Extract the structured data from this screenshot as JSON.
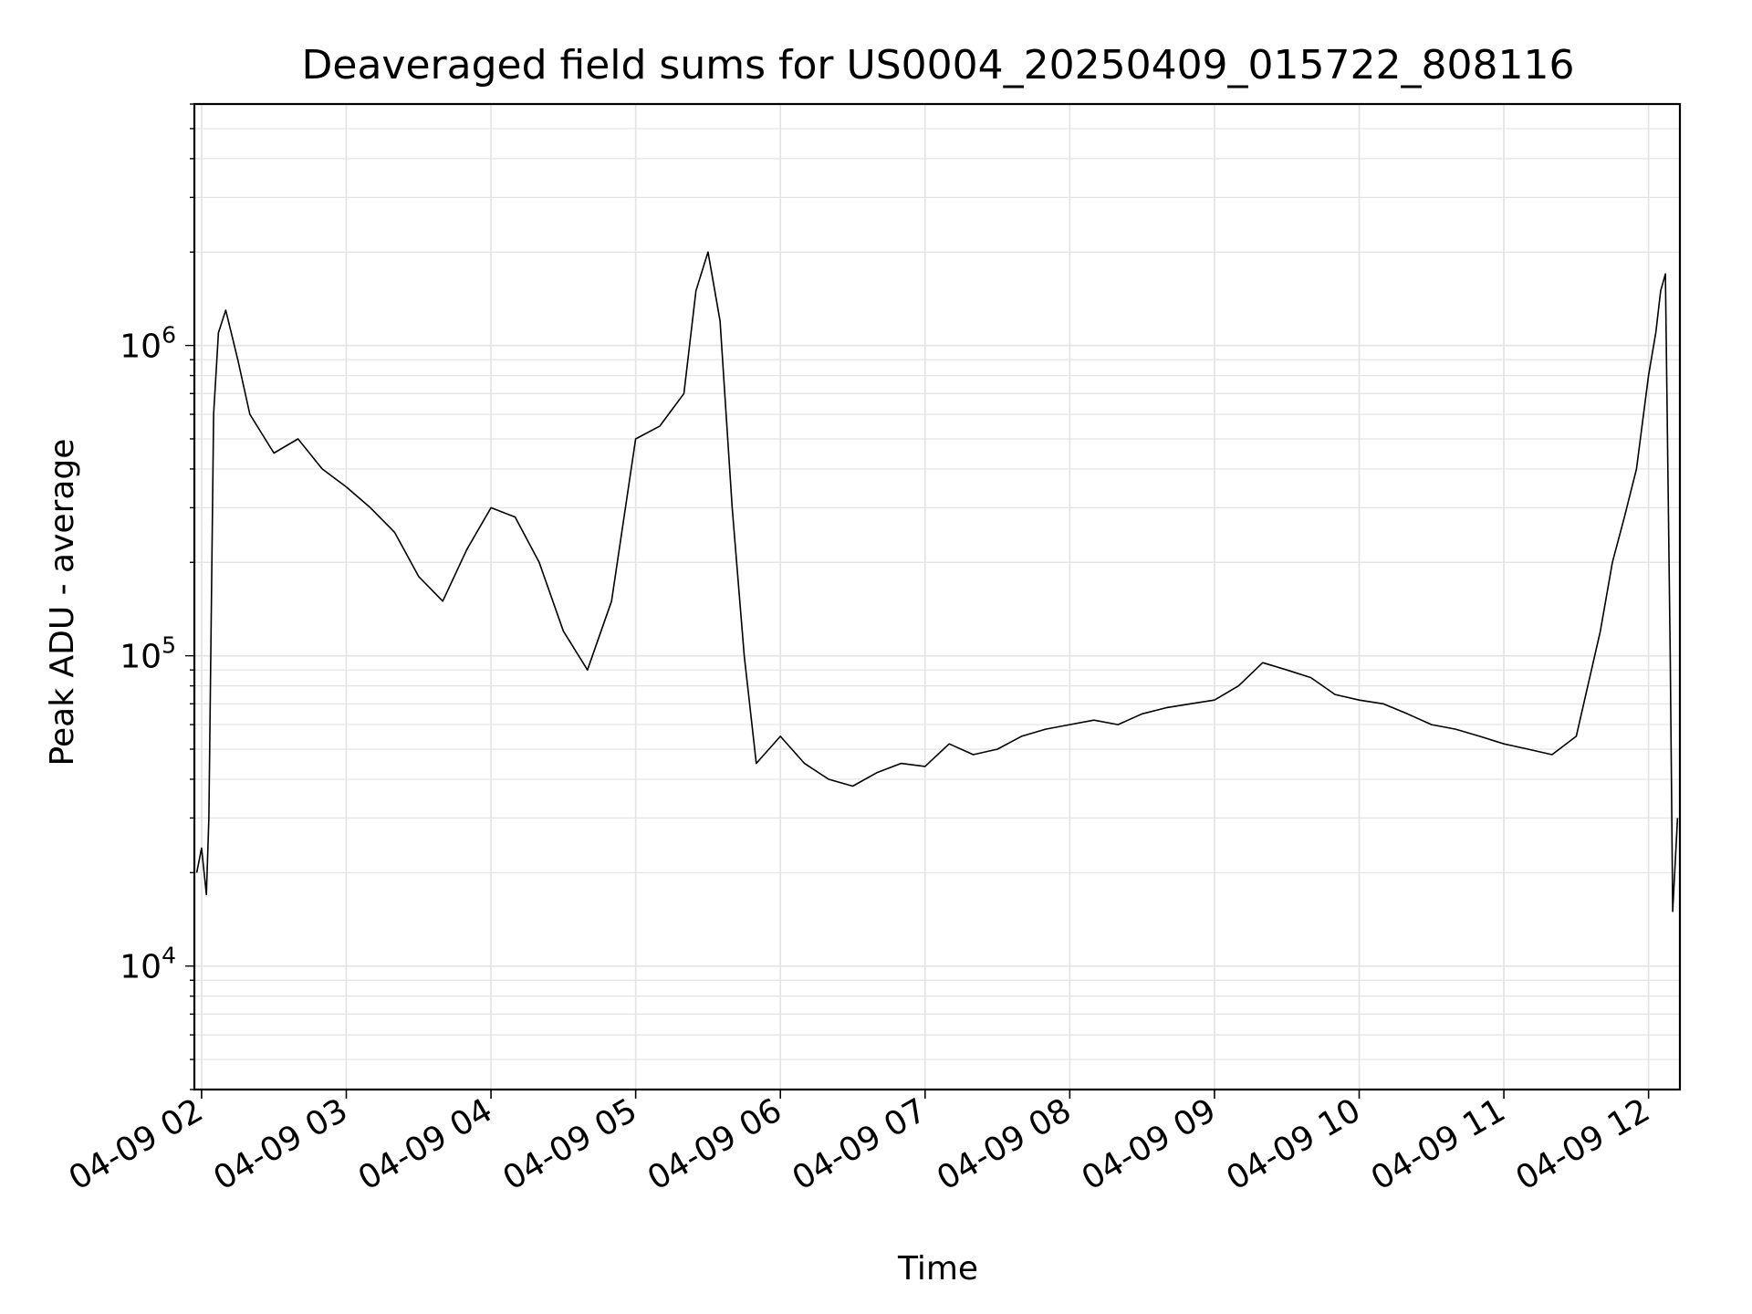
{
  "chart_data": {
    "type": "line",
    "title": "Deaveraged field sums for US0004_20250409_015722_808116",
    "xlabel": "Time",
    "ylabel": "Peak ADU - average",
    "yscale": "log",
    "grid": true,
    "xlim": [
      "04-09 01:57",
      "04-09 12:13"
    ],
    "ylim": [
      4000,
      6000000
    ],
    "x_ticks": [
      "04-09 02",
      "04-09 03",
      "04-09 04",
      "04-09 05",
      "04-09 06",
      "04-09 07",
      "04-09 08",
      "04-09 09",
      "04-09 10",
      "04-09 11",
      "04-09 12"
    ],
    "y_ticks": [
      {
        "value": 10000,
        "base": "10",
        "exp": "4"
      },
      {
        "value": 100000,
        "base": "10",
        "exp": "5"
      },
      {
        "value": 1000000,
        "base": "10",
        "exp": "6"
      }
    ],
    "line_color": "#000000",
    "series": [
      {
        "x": [
          "04-09 01:58",
          "04-09 02:00",
          "04-09 02:02",
          "04-09 02:03",
          "04-09 02:05",
          "04-09 02:07",
          "04-09 02:10",
          "04-09 02:15",
          "04-09 02:20",
          "04-09 02:30",
          "04-09 02:40",
          "04-09 02:50",
          "04-09 03:00",
          "04-09 03:10",
          "04-09 03:20",
          "04-09 03:30",
          "04-09 03:40",
          "04-09 03:50",
          "04-09 04:00",
          "04-09 04:10",
          "04-09 04:20",
          "04-09 04:30",
          "04-09 04:40",
          "04-09 04:50",
          "04-09 05:00",
          "04-09 05:10",
          "04-09 05:20",
          "04-09 05:25",
          "04-09 05:30",
          "04-09 05:35",
          "04-09 05:40",
          "04-09 05:45",
          "04-09 05:50",
          "04-09 06:00",
          "04-09 06:10",
          "04-09 06:20",
          "04-09 06:30",
          "04-09 06:40",
          "04-09 06:50",
          "04-09 07:00",
          "04-09 07:10",
          "04-09 07:20",
          "04-09 07:30",
          "04-09 07:40",
          "04-09 07:50",
          "04-09 08:00",
          "04-09 08:10",
          "04-09 08:20",
          "04-09 08:30",
          "04-09 08:40",
          "04-09 08:50",
          "04-09 09:00",
          "04-09 09:10",
          "04-09 09:20",
          "04-09 09:30",
          "04-09 09:40",
          "04-09 09:50",
          "04-09 10:00",
          "04-09 10:10",
          "04-09 10:20",
          "04-09 10:30",
          "04-09 10:40",
          "04-09 10:50",
          "04-09 11:00",
          "04-09 11:10",
          "04-09 11:20",
          "04-09 11:30",
          "04-09 11:40",
          "04-09 11:45",
          "04-09 11:50",
          "04-09 11:55",
          "04-09 12:00",
          "04-09 12:03",
          "04-09 12:05",
          "04-09 12:07",
          "04-09 12:09",
          "04-09 12:10",
          "04-09 12:12"
        ],
        "values": [
          20000,
          24000,
          17000,
          30000,
          600000,
          1100000,
          1300000,
          900000,
          600000,
          450000,
          500000,
          400000,
          350000,
          300000,
          250000,
          180000,
          150000,
          220000,
          300000,
          280000,
          200000,
          120000,
          90000,
          150000,
          500000,
          550000,
          700000,
          1500000,
          2000000,
          1200000,
          300000,
          100000,
          45000,
          55000,
          45000,
          40000,
          38000,
          42000,
          45000,
          44000,
          52000,
          48000,
          50000,
          55000,
          58000,
          60000,
          62000,
          60000,
          65000,
          68000,
          70000,
          72000,
          80000,
          95000,
          90000,
          85000,
          75000,
          72000,
          70000,
          65000,
          60000,
          58000,
          55000,
          52000,
          50000,
          48000,
          55000,
          120000,
          200000,
          280000,
          400000,
          800000,
          1100000,
          1500000,
          1700000,
          100000,
          15000,
          30000
        ]
      }
    ]
  }
}
